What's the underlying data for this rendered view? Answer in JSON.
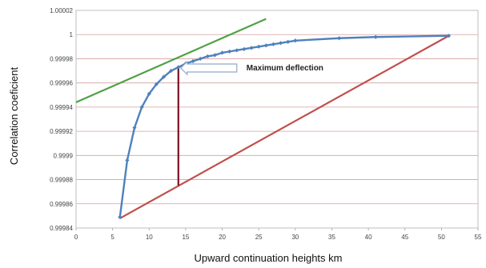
{
  "chart_data": {
    "type": "line",
    "title": "",
    "xlabel": "Upward continuation heights  km",
    "ylabel": "Correlation coeficient",
    "xlim": [
      0,
      55
    ],
    "ylim": [
      0.99984,
      1.00002
    ],
    "x_ticks": [
      "0",
      "5",
      "10",
      "15",
      "20",
      "25",
      "30",
      "35",
      "40",
      "45",
      "50",
      "55"
    ],
    "y_ticks": [
      "0.99984",
      "0.99986",
      "0.99988",
      "0.9999",
      "0.99992",
      "0.99994",
      "0.99996",
      "0.99998",
      "1",
      "1.00002"
    ],
    "grid": "horizontal",
    "legend": "none",
    "series": [
      {
        "color": "#4f81bd",
        "x": [
          6,
          7,
          8,
          9,
          10,
          11,
          12,
          13,
          14,
          15,
          16,
          17,
          18,
          19,
          20,
          21,
          22,
          23,
          24,
          25,
          26,
          27,
          28,
          29,
          30,
          36,
          41,
          51
        ],
        "y": [
          0.999849,
          0.999896,
          0.999923,
          0.99994,
          0.999951,
          0.999959,
          0.999965,
          0.99997,
          0.999973,
          0.999976,
          0.999978,
          0.99998,
          0.999982,
          0.999983,
          0.999985,
          0.999986,
          0.999987,
          0.999988,
          0.999989,
          0.99999,
          0.999991,
          0.999992,
          0.999993,
          0.999994,
          0.999995,
          0.999997,
          0.999998,
          0.999999
        ]
      }
    ],
    "lines": [
      {
        "kind": "chord",
        "color": "#c0504d",
        "x": [
          6,
          51
        ],
        "y": [
          0.999848,
          0.999999
        ]
      },
      {
        "kind": "tangent",
        "color": "#4ea144",
        "x": [
          0,
          26
        ],
        "y": [
          0.999944,
          1.000013
        ]
      },
      {
        "kind": "deflection",
        "color": "#7b1020",
        "x": [
          14,
          14
        ],
        "y": [
          0.999875,
          0.999973
        ]
      }
    ],
    "annotations": [
      {
        "text": "Maximum deflection",
        "x": 14,
        "y": 0.999973
      }
    ]
  }
}
